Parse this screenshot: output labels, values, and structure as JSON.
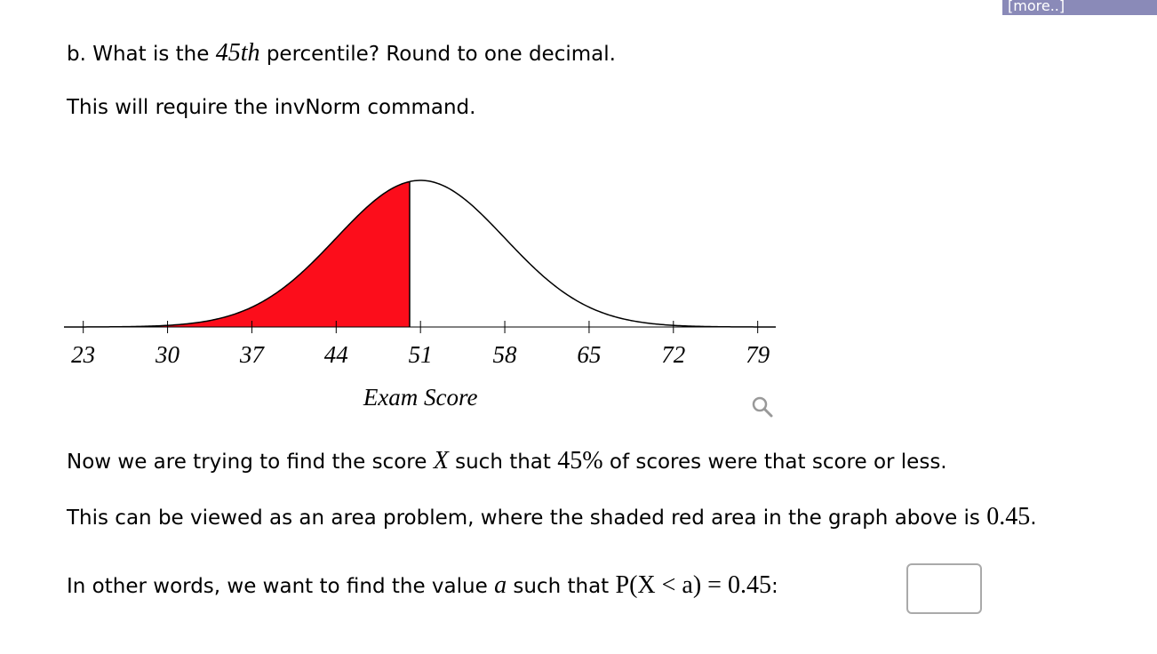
{
  "more_button": "[more..]",
  "paragraphs": [
    [
      "b. What is the",
      "45th",
      "percentile? Round to one decimal."
    ],
    [
      "This will require the invNorm command."
    ],
    [
      "Now we are trying to find the score",
      "X",
      "such that",
      "45%",
      "of scores were that score or less."
    ],
    [
      "This can be viewed as an area problem, where the shaded red area in the graph above is",
      "0.45",
      "."
    ],
    [
      "In other words, we want to find the value",
      "a",
      "such that",
      "P(X < a) = 0.45",
      ":"
    ]
  ],
  "chart_data": {
    "type": "normal",
    "mean": 51,
    "sd": 7,
    "shade_below": 50.1,
    "shade_color": "#fc0d1b",
    "xlim": [
      21.4,
      80.5
    ],
    "xticks": [
      23,
      30,
      37,
      44,
      51,
      58,
      65,
      72,
      79
    ],
    "xlabel": "Exam Score"
  }
}
